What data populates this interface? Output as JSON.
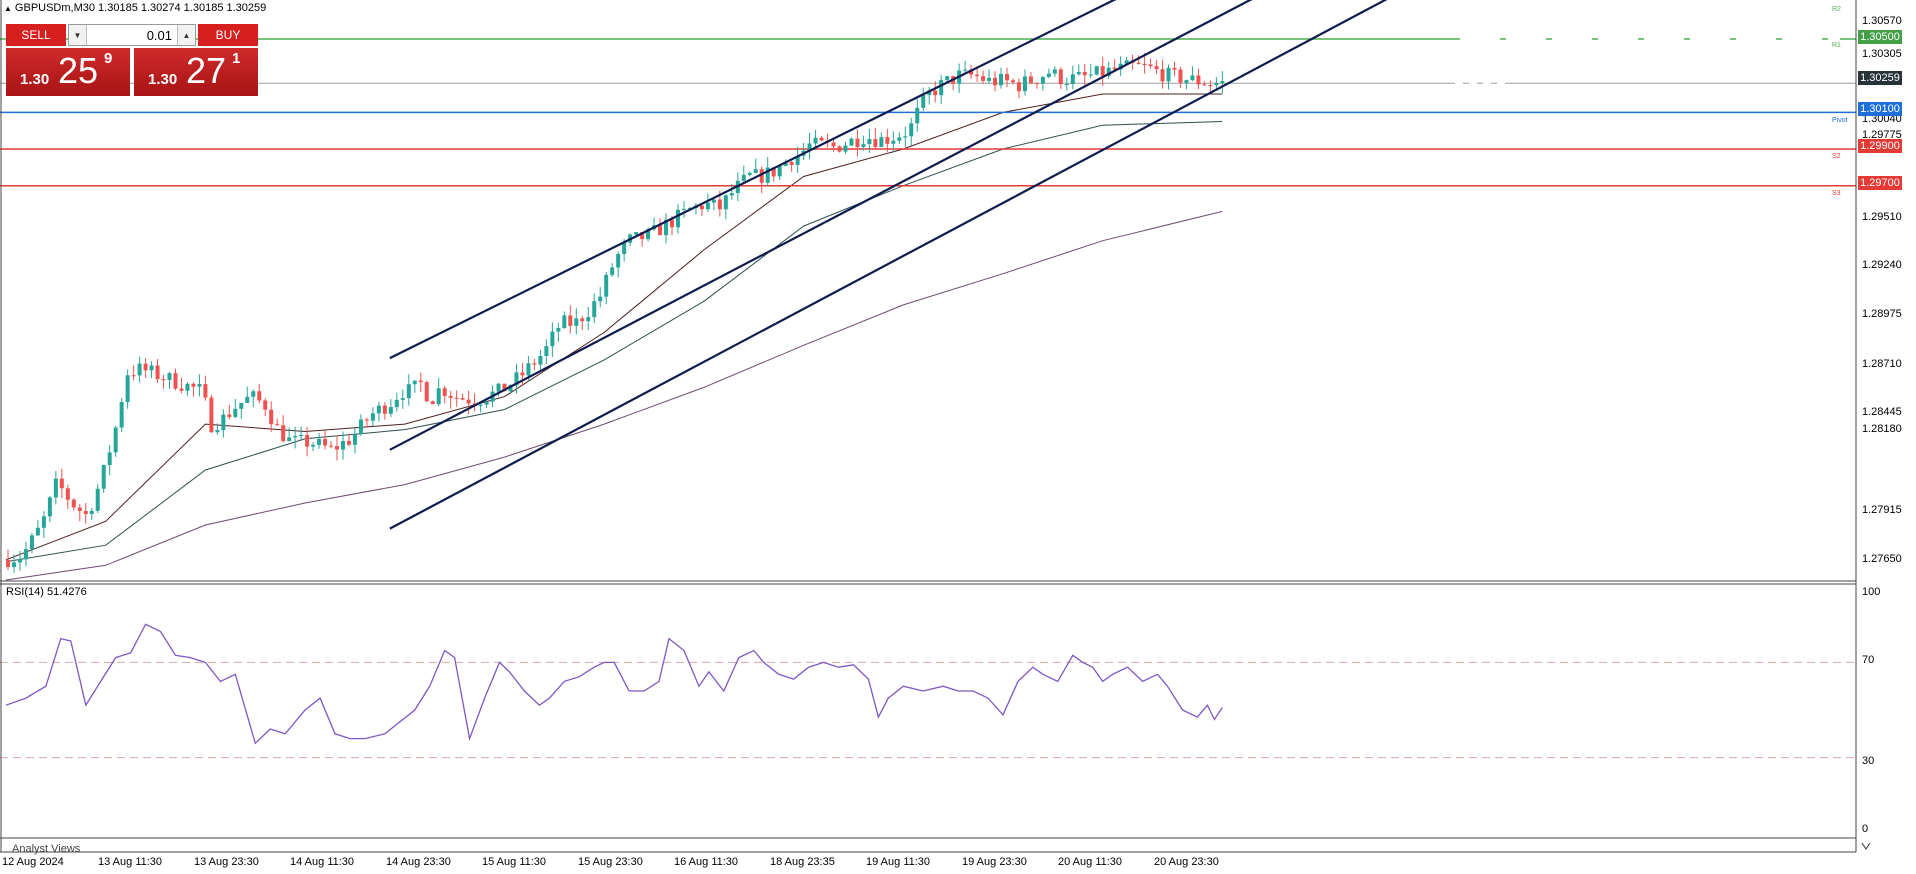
{
  "header": {
    "symbol_line": "GBPUSDm,M30  1.30185 1.30274 1.30185 1.30259"
  },
  "trade_panel": {
    "sell_label": "SELL",
    "buy_label": "BUY",
    "lot_value": "0.01",
    "sell_price": {
      "prefix": "1.30",
      "big": "25",
      "sup": "9"
    },
    "buy_price": {
      "prefix": "1.30",
      "big": "27",
      "sup": "1"
    }
  },
  "price_axis": {
    "labels": [
      "1.30570",
      "1.30305",
      "1.30040",
      "1.29775",
      "1.29510",
      "1.29240",
      "1.28975",
      "1.28710",
      "1.28445",
      "1.28180",
      "1.27915",
      "1.27650"
    ],
    "current_price_tag": "1.30259"
  },
  "levels": [
    {
      "name": "R1",
      "price_label": "1.30500",
      "value": 1.305,
      "color": "#4caf50",
      "tag": "R1"
    },
    {
      "name": "Pivot",
      "price_label": "1.30100",
      "value": 1.301,
      "color": "#1e6fd9",
      "tag": "Pivot"
    },
    {
      "name": "S2",
      "price_label": "1.29900",
      "value": 1.299,
      "color": "#e53935",
      "tag": "S2"
    },
    {
      "name": "S3",
      "price_label": "1.29700",
      "value": 1.297,
      "color": "#e53935",
      "tag": "S3"
    }
  ],
  "r2_tag": "R2",
  "rsi": {
    "header": "RSI(14) 51.4276",
    "axis_labels": [
      "100",
      "70",
      "30",
      "0"
    ]
  },
  "time_axis": [
    "12 Aug 2024",
    "13 Aug 11:30",
    "13 Aug 23:30",
    "14 Aug 11:30",
    "14 Aug 23:30",
    "15 Aug 11:30",
    "15 Aug 23:30",
    "16 Aug 11:30",
    "18 Aug 23:35",
    "19 Aug 11:30",
    "19 Aug 23:30",
    "20 Aug 11:30",
    "20 Aug 23:30"
  ],
  "bottom_tab": "Analyst Views",
  "colors": {
    "bull": "#26a69a",
    "bear": "#ef5350",
    "channel": "#0d1b4f",
    "rsi": "#7e57c2"
  },
  "chart_data": {
    "type": "candlestick",
    "symbol": "GBPUSDm",
    "timeframe": "M30",
    "ylim": [
      1.2755,
      1.3068
    ],
    "price_path": [
      [
        0,
        1.2766
      ],
      [
        20,
        1.2768
      ],
      [
        40,
        1.2785
      ],
      [
        55,
        1.2808
      ],
      [
        70,
        1.2797
      ],
      [
        85,
        1.279
      ],
      [
        100,
        1.281
      ],
      [
        115,
        1.284
      ],
      [
        125,
        1.2868
      ],
      [
        140,
        1.287
      ],
      [
        160,
        1.2866
      ],
      [
        180,
        1.2862
      ],
      [
        200,
        1.2858
      ],
      [
        210,
        1.284
      ],
      [
        220,
        1.2842
      ],
      [
        235,
        1.285
      ],
      [
        250,
        1.2855
      ],
      [
        265,
        1.285
      ],
      [
        275,
        1.2838
      ],
      [
        290,
        1.283
      ],
      [
        310,
        1.283
      ],
      [
        330,
        1.2826
      ],
      [
        350,
        1.2832
      ],
      [
        370,
        1.2845
      ],
      [
        390,
        1.2852
      ],
      [
        400,
        1.2858
      ],
      [
        410,
        1.2858
      ],
      [
        420,
        1.2862
      ],
      [
        430,
        1.2853
      ],
      [
        440,
        1.286
      ],
      [
        455,
        1.2855
      ],
      [
        475,
        1.2853
      ],
      [
        500,
        1.2858
      ],
      [
        520,
        1.2866
      ],
      [
        545,
        1.288
      ],
      [
        560,
        1.2895
      ],
      [
        575,
        1.2895
      ],
      [
        590,
        1.2903
      ],
      [
        600,
        1.291
      ],
      [
        615,
        1.293
      ],
      [
        630,
        1.294
      ],
      [
        650,
        1.2943
      ],
      [
        670,
        1.295
      ],
      [
        690,
        1.2957
      ],
      [
        705,
        1.296
      ],
      [
        720,
        1.2958
      ],
      [
        735,
        1.2968
      ],
      [
        750,
        1.2975
      ],
      [
        760,
        1.2975
      ],
      [
        775,
        1.2978
      ],
      [
        790,
        1.2985
      ],
      [
        800,
        1.2987
      ],
      [
        810,
        1.2992
      ],
      [
        820,
        1.2992
      ],
      [
        835,
        1.2991
      ],
      [
        850,
        1.2994
      ],
      [
        865,
        1.2997
      ],
      [
        880,
        1.2995
      ],
      [
        890,
        1.2996
      ],
      [
        900,
        1.2998
      ],
      [
        910,
        1.3
      ],
      [
        920,
        1.3012
      ],
      [
        930,
        1.302
      ],
      [
        945,
        1.3026
      ],
      [
        960,
        1.303
      ],
      [
        975,
        1.303
      ],
      [
        990,
        1.3027
      ],
      [
        1005,
        1.3027
      ],
      [
        1020,
        1.3025
      ],
      [
        1035,
        1.3028
      ],
      [
        1050,
        1.3032
      ],
      [
        1065,
        1.3028
      ],
      [
        1085,
        1.3029
      ],
      [
        1100,
        1.3031
      ],
      [
        1115,
        1.3033
      ],
      [
        1135,
        1.3035
      ],
      [
        1150,
        1.3034
      ],
      [
        1160,
        1.3032
      ],
      [
        1170,
        1.303
      ],
      [
        1180,
        1.3029
      ],
      [
        1190,
        1.3028
      ],
      [
        1200,
        1.3027
      ],
      [
        1212,
        1.3026
      ],
      [
        1220,
        1.3026
      ]
    ],
    "ema_fast": [
      [
        0,
        1.2766
      ],
      [
        100,
        1.2787
      ],
      [
        200,
        1.284
      ],
      [
        300,
        1.2836
      ],
      [
        400,
        1.284
      ],
      [
        500,
        1.2855
      ],
      [
        600,
        1.289
      ],
      [
        700,
        1.2935
      ],
      [
        800,
        1.2975
      ],
      [
        900,
        1.299
      ],
      [
        1000,
        1.301
      ],
      [
        1100,
        1.302
      ],
      [
        1220,
        1.302
      ]
    ],
    "ema_mid": [
      [
        0,
        1.2765
      ],
      [
        100,
        1.2774
      ],
      [
        200,
        1.2815
      ],
      [
        300,
        1.2832
      ],
      [
        400,
        1.2837
      ],
      [
        500,
        1.2848
      ],
      [
        600,
        1.2875
      ],
      [
        700,
        1.2907
      ],
      [
        800,
        1.2948
      ],
      [
        900,
        1.297
      ],
      [
        1000,
        1.299
      ],
      [
        1100,
        1.3003
      ],
      [
        1220,
        1.3005
      ]
    ],
    "ema_slow": [
      [
        0,
        1.2755
      ],
      [
        100,
        1.2763
      ],
      [
        200,
        1.2785
      ],
      [
        300,
        1.2797
      ],
      [
        400,
        1.2807
      ],
      [
        500,
        1.2822
      ],
      [
        600,
        1.284
      ],
      [
        700,
        1.286
      ],
      [
        800,
        1.2883
      ],
      [
        900,
        1.2905
      ],
      [
        1000,
        1.2922
      ],
      [
        1100,
        1.294
      ],
      [
        1220,
        1.2956
      ]
    ],
    "channel_lines": [
      [
        [
          385,
          1.2876
        ],
        [
          1140,
          1.3079
        ]
      ],
      [
        [
          385,
          1.2826
        ],
        [
          1275,
          1.3079
        ]
      ],
      [
        [
          385,
          1.2783
        ],
        [
          1410,
          1.3079
        ]
      ]
    ],
    "current_price": 1.30259,
    "rsi_period": 14,
    "rsi_last": 51.4276,
    "rsi_levels": [
      70,
      30
    ],
    "rsi_series": [
      [
        0,
        52
      ],
      [
        20,
        55
      ],
      [
        40,
        60
      ],
      [
        55,
        80
      ],
      [
        65,
        79
      ],
      [
        80,
        52
      ],
      [
        95,
        62
      ],
      [
        110,
        72
      ],
      [
        125,
        74
      ],
      [
        140,
        86
      ],
      [
        155,
        83
      ],
      [
        170,
        73
      ],
      [
        185,
        72
      ],
      [
        200,
        70
      ],
      [
        215,
        62
      ],
      [
        230,
        65
      ],
      [
        250,
        36
      ],
      [
        265,
        42
      ],
      [
        280,
        40
      ],
      [
        300,
        50
      ],
      [
        315,
        55
      ],
      [
        330,
        40
      ],
      [
        345,
        38
      ],
      [
        360,
        38
      ],
      [
        380,
        40
      ],
      [
        395,
        45
      ],
      [
        410,
        50
      ],
      [
        425,
        60
      ],
      [
        440,
        75
      ],
      [
        450,
        72
      ],
      [
        465,
        38
      ],
      [
        480,
        55
      ],
      [
        495,
        70
      ],
      [
        505,
        66
      ],
      [
        520,
        58
      ],
      [
        535,
        52
      ],
      [
        545,
        55
      ],
      [
        560,
        62
      ],
      [
        575,
        64
      ],
      [
        590,
        68
      ],
      [
        600,
        70
      ],
      [
        610,
        70
      ],
      [
        625,
        58
      ],
      [
        640,
        58
      ],
      [
        655,
        62
      ],
      [
        665,
        80
      ],
      [
        680,
        75
      ],
      [
        695,
        60
      ],
      [
        705,
        66
      ],
      [
        720,
        58
      ],
      [
        735,
        72
      ],
      [
        750,
        75
      ],
      [
        760,
        70
      ],
      [
        775,
        65
      ],
      [
        790,
        63
      ],
      [
        805,
        68
      ],
      [
        820,
        70
      ],
      [
        835,
        68
      ],
      [
        850,
        69
      ],
      [
        865,
        63
      ],
      [
        875,
        47
      ],
      [
        885,
        55
      ],
      [
        900,
        60
      ],
      [
        920,
        58
      ],
      [
        940,
        60
      ],
      [
        955,
        58
      ],
      [
        970,
        58
      ],
      [
        985,
        55
      ],
      [
        1000,
        48
      ],
      [
        1015,
        62
      ],
      [
        1030,
        68
      ],
      [
        1040,
        65
      ],
      [
        1055,
        62
      ],
      [
        1070,
        73
      ],
      [
        1080,
        70
      ],
      [
        1090,
        68
      ],
      [
        1100,
        62
      ],
      [
        1110,
        65
      ],
      [
        1125,
        68
      ],
      [
        1140,
        62
      ],
      [
        1155,
        65
      ],
      [
        1165,
        60
      ],
      [
        1180,
        50
      ],
      [
        1195,
        47
      ],
      [
        1205,
        52
      ],
      [
        1212,
        46
      ],
      [
        1220,
        51
      ]
    ]
  }
}
